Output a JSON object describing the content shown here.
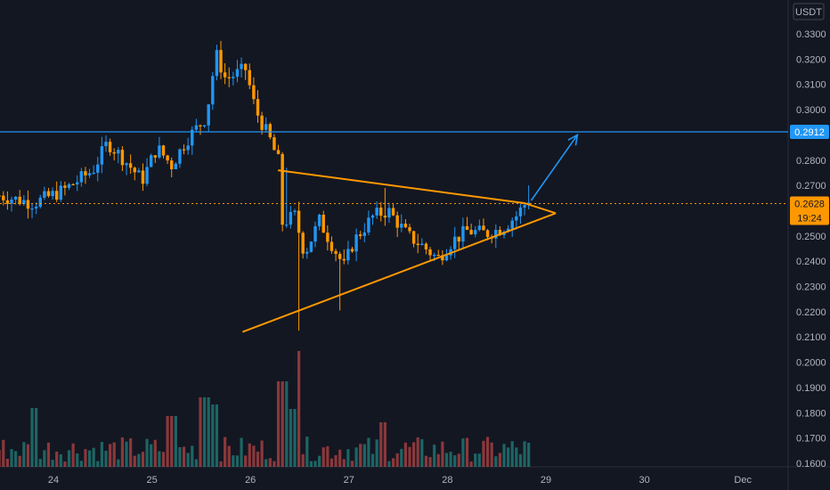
{
  "chart_data": {
    "type": "candlestick",
    "currency": "USDT",
    "y_ticks": [
      "0.3300",
      "0.3200",
      "0.3100",
      "0.3000",
      "0.2800",
      "0.2700",
      "0.2500",
      "0.2400",
      "0.2300",
      "0.2200",
      "0.2100",
      "0.2000",
      "0.1900",
      "0.1800",
      "0.1700",
      "0.1600"
    ],
    "y_tick_values": [
      0.33,
      0.32,
      0.31,
      0.3,
      0.28,
      0.27,
      0.25,
      0.24,
      0.23,
      0.22,
      0.21,
      0.2,
      0.19,
      0.18,
      0.17,
      0.16
    ],
    "ylim": [
      0.16,
      0.334
    ],
    "x_ticks": [
      "24",
      "25",
      "26",
      "27",
      "28",
      "29",
      "30",
      "Dec"
    ],
    "x_tick_days": [
      24,
      25,
      26,
      27,
      28,
      29,
      30,
      31
    ],
    "xlim_days": [
      23.45,
      31.8
    ],
    "resistance": {
      "value": 0.2912,
      "label": "0.2912"
    },
    "last_price": {
      "value": 0.2628,
      "label": "0.2628",
      "countdown": "19:24"
    },
    "triangle": {
      "upper": [
        [
          26.28,
          0.276
        ],
        [
          28.78,
          0.263
        ],
        [
          29.1,
          0.259
        ]
      ],
      "lower": [
        [
          25.92,
          0.212
        ],
        [
          29.1,
          0.259
        ]
      ]
    },
    "projection_arrow": [
      [
        28.85,
        0.264
      ],
      [
        29.32,
        0.29
      ]
    ],
    "candles_green_color": "#2196f3",
    "candles_red_color": "#ff9800",
    "volume_green_color": "#26a69a",
    "volume_red_color": "#ef5350",
    "colors": {
      "background": "#131722",
      "resistance_line": "#2196f3",
      "price_tag": "#ff9800",
      "triangle": "#ff9800",
      "arrow": "#2196f3"
    }
  }
}
